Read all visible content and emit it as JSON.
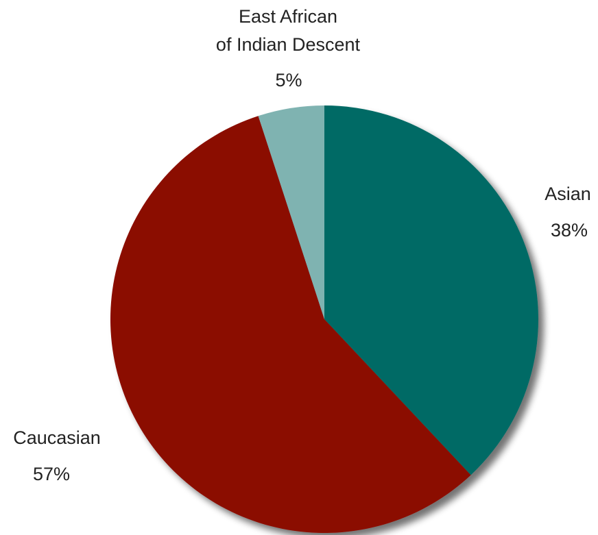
{
  "chart_data": {
    "type": "pie",
    "title": "",
    "slices": [
      {
        "label": "Asian",
        "value": 38,
        "value_label": "38%",
        "color": "#006b65"
      },
      {
        "label": "Caucasian",
        "value": 57,
        "value_label": "57%",
        "color": "#8b1006"
      },
      {
        "label": "East African of Indian Descent",
        "label_lines": [
          "East African",
          "of Indian Descent"
        ],
        "value": 5,
        "value_label": "5%",
        "color": "#7fb3b1"
      }
    ],
    "start": "12 o'clock",
    "direction": "clockwise",
    "legend": "none",
    "labels": "outside"
  }
}
